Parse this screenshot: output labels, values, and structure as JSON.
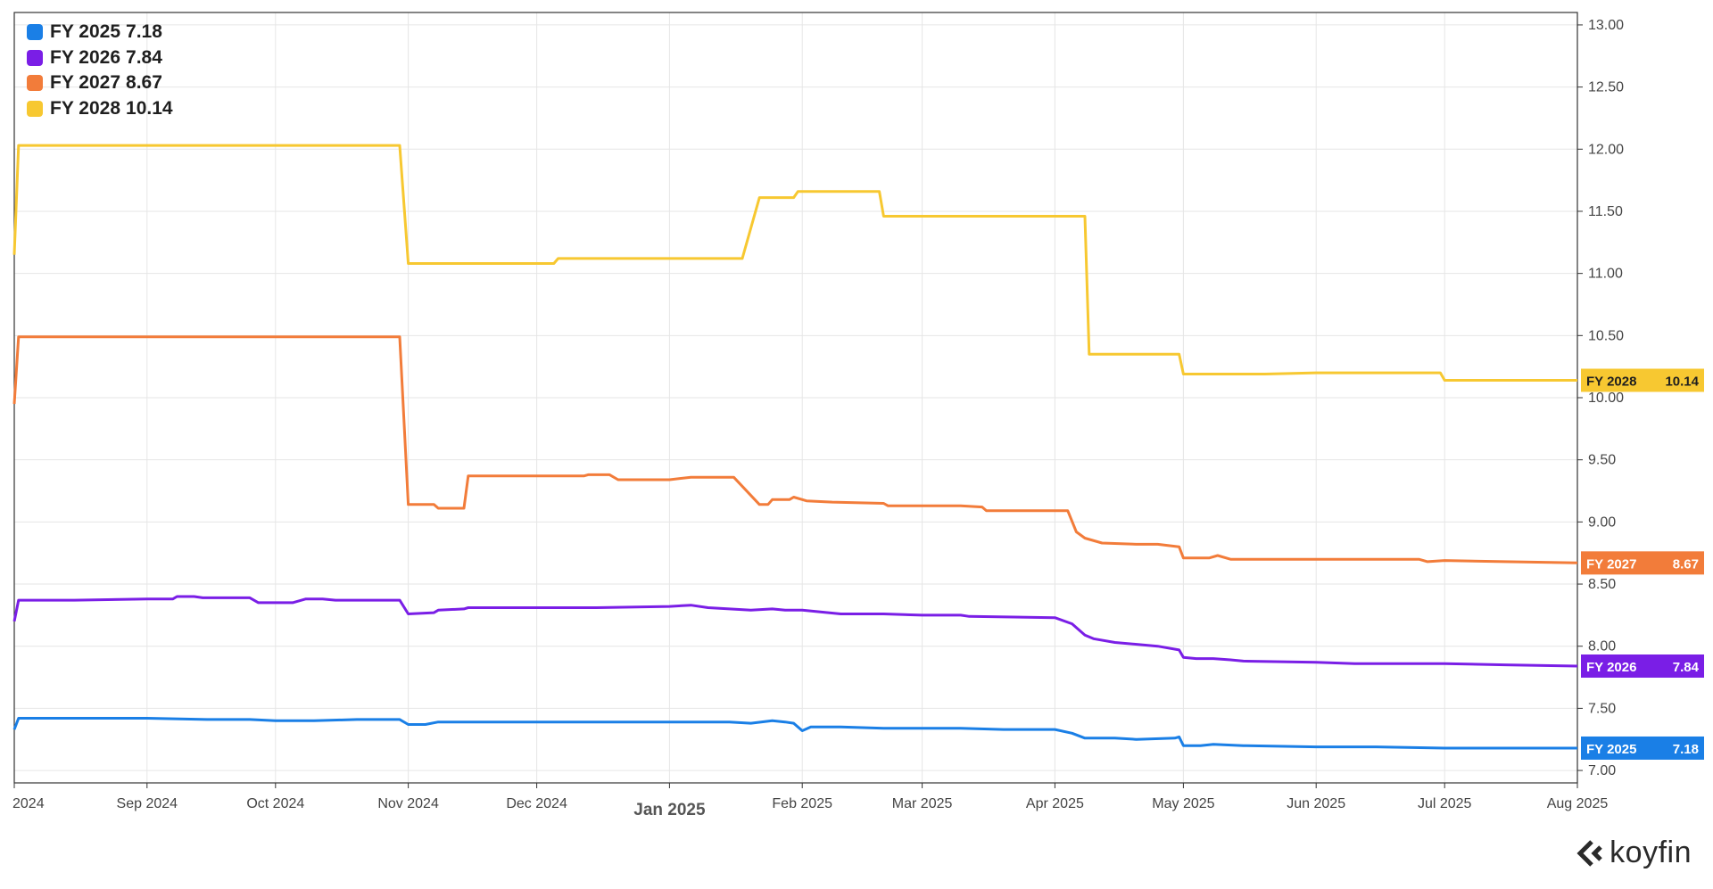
{
  "brand": {
    "name": "koyfin",
    "icon": "koyfin-chevron-logo"
  },
  "colors": {
    "grid": "#e6e6e6",
    "frame": "#333333",
    "tick_text": "#444444"
  },
  "chart_data": {
    "type": "line",
    "title": "",
    "xlabel": "",
    "ylabel": "",
    "ylim": [
      6.9,
      13.1
    ],
    "xlim": [
      "2024-08-01",
      "2025-08-01"
    ],
    "yticks": [
      7.0,
      7.5,
      8.0,
      8.5,
      9.0,
      9.5,
      10.0,
      10.5,
      11.0,
      11.5,
      12.0,
      12.5,
      13.0
    ],
    "ytick_labels": [
      "7.00",
      "7.50",
      "8.00",
      "8.50",
      "9.00",
      "9.50",
      "10.00",
      "10.50",
      "11.00",
      "11.50",
      "12.00",
      "12.50",
      "13.00"
    ],
    "xticks": [
      {
        "date": "2024-08-01",
        "label": "2024",
        "emphasis": false
      },
      {
        "date": "2024-09-01",
        "label": "Sep 2024",
        "emphasis": false
      },
      {
        "date": "2024-10-01",
        "label": "Oct 2024",
        "emphasis": false
      },
      {
        "date": "2024-11-01",
        "label": "Nov 2024",
        "emphasis": false
      },
      {
        "date": "2024-12-01",
        "label": "Dec 2024",
        "emphasis": false
      },
      {
        "date": "2025-01-01",
        "label": "Jan 2025",
        "emphasis": true
      },
      {
        "date": "2025-02-01",
        "label": "Feb 2025",
        "emphasis": false
      },
      {
        "date": "2025-03-01",
        "label": "Mar 2025",
        "emphasis": false
      },
      {
        "date": "2025-04-01",
        "label": "Apr 2025",
        "emphasis": false
      },
      {
        "date": "2025-05-01",
        "label": "May 2025",
        "emphasis": false
      },
      {
        "date": "2025-06-01",
        "label": "Jun 2025",
        "emphasis": false
      },
      {
        "date": "2025-07-01",
        "label": "Jul 2025",
        "emphasis": false
      },
      {
        "date": "2025-08-01",
        "label": "Aug 2025",
        "emphasis": false
      }
    ],
    "grid": true,
    "legend_position": "top-left",
    "series": [
      {
        "name": "FY 2025",
        "last_label": "7.18",
        "color": "#1a7fe6",
        "points": [
          [
            "2024-08-01",
            7.33
          ],
          [
            "2024-08-02",
            7.42
          ],
          [
            "2024-08-10",
            7.42
          ],
          [
            "2024-08-20",
            7.42
          ],
          [
            "2024-09-01",
            7.42
          ],
          [
            "2024-09-15",
            7.41
          ],
          [
            "2024-09-25",
            7.41
          ],
          [
            "2024-10-01",
            7.4
          ],
          [
            "2024-10-10",
            7.4
          ],
          [
            "2024-10-20",
            7.41
          ],
          [
            "2024-10-30",
            7.41
          ],
          [
            "2024-11-01",
            7.37
          ],
          [
            "2024-11-05",
            7.37
          ],
          [
            "2024-11-08",
            7.39
          ],
          [
            "2024-11-20",
            7.39
          ],
          [
            "2024-12-01",
            7.39
          ],
          [
            "2024-12-15",
            7.39
          ],
          [
            "2025-01-01",
            7.39
          ],
          [
            "2025-01-15",
            7.39
          ],
          [
            "2025-01-20",
            7.38
          ],
          [
            "2025-01-25",
            7.4
          ],
          [
            "2025-01-28",
            7.39
          ],
          [
            "2025-01-30",
            7.38
          ],
          [
            "2025-02-01",
            7.32
          ],
          [
            "2025-02-03",
            7.35
          ],
          [
            "2025-02-10",
            7.35
          ],
          [
            "2025-02-20",
            7.34
          ],
          [
            "2025-03-01",
            7.34
          ],
          [
            "2025-03-10",
            7.34
          ],
          [
            "2025-03-20",
            7.33
          ],
          [
            "2025-04-01",
            7.33
          ],
          [
            "2025-04-05",
            7.3
          ],
          [
            "2025-04-08",
            7.26
          ],
          [
            "2025-04-15",
            7.26
          ],
          [
            "2025-04-20",
            7.25
          ],
          [
            "2025-04-29",
            7.26
          ],
          [
            "2025-04-30",
            7.27
          ],
          [
            "2025-05-01",
            7.2
          ],
          [
            "2025-05-05",
            7.2
          ],
          [
            "2025-05-08",
            7.21
          ],
          [
            "2025-05-15",
            7.2
          ],
          [
            "2025-06-01",
            7.19
          ],
          [
            "2025-06-15",
            7.19
          ],
          [
            "2025-07-01",
            7.18
          ],
          [
            "2025-07-15",
            7.18
          ],
          [
            "2025-08-01",
            7.18
          ]
        ]
      },
      {
        "name": "FY 2026",
        "last_label": "7.84",
        "color": "#7a1ee6",
        "points": [
          [
            "2024-08-01",
            8.2
          ],
          [
            "2024-08-02",
            8.37
          ],
          [
            "2024-08-15",
            8.37
          ],
          [
            "2024-09-01",
            8.38
          ],
          [
            "2024-09-07",
            8.38
          ],
          [
            "2024-09-08",
            8.4
          ],
          [
            "2024-09-12",
            8.4
          ],
          [
            "2024-09-14",
            8.39
          ],
          [
            "2024-09-25",
            8.39
          ],
          [
            "2024-09-27",
            8.35
          ],
          [
            "2024-10-05",
            8.35
          ],
          [
            "2024-10-08",
            8.38
          ],
          [
            "2024-10-12",
            8.38
          ],
          [
            "2024-10-15",
            8.37
          ],
          [
            "2024-10-30",
            8.37
          ],
          [
            "2024-11-01",
            8.26
          ],
          [
            "2024-11-07",
            8.27
          ],
          [
            "2024-11-08",
            8.29
          ],
          [
            "2024-11-14",
            8.3
          ],
          [
            "2024-11-15",
            8.31
          ],
          [
            "2024-12-01",
            8.31
          ],
          [
            "2024-12-15",
            8.31
          ],
          [
            "2025-01-01",
            8.32
          ],
          [
            "2025-01-06",
            8.33
          ],
          [
            "2025-01-10",
            8.31
          ],
          [
            "2025-01-20",
            8.29
          ],
          [
            "2025-01-25",
            8.3
          ],
          [
            "2025-01-28",
            8.29
          ],
          [
            "2025-02-01",
            8.29
          ],
          [
            "2025-02-10",
            8.26
          ],
          [
            "2025-02-20",
            8.26
          ],
          [
            "2025-03-01",
            8.25
          ],
          [
            "2025-03-10",
            8.25
          ],
          [
            "2025-03-12",
            8.24
          ],
          [
            "2025-04-01",
            8.23
          ],
          [
            "2025-04-05",
            8.18
          ],
          [
            "2025-04-08",
            8.09
          ],
          [
            "2025-04-10",
            8.06
          ],
          [
            "2025-04-15",
            8.03
          ],
          [
            "2025-04-25",
            8.0
          ],
          [
            "2025-04-30",
            7.97
          ],
          [
            "2025-05-01",
            7.91
          ],
          [
            "2025-05-04",
            7.9
          ],
          [
            "2025-05-08",
            7.9
          ],
          [
            "2025-05-12",
            7.89
          ],
          [
            "2025-05-15",
            7.88
          ],
          [
            "2025-06-01",
            7.87
          ],
          [
            "2025-06-10",
            7.86
          ],
          [
            "2025-07-01",
            7.86
          ],
          [
            "2025-07-15",
            7.85
          ],
          [
            "2025-08-01",
            7.84
          ]
        ]
      },
      {
        "name": "FY 2027",
        "last_label": "8.67",
        "color": "#f27c3a",
        "points": [
          [
            "2024-08-01",
            9.95
          ],
          [
            "2024-08-02",
            10.49
          ],
          [
            "2024-09-01",
            10.49
          ],
          [
            "2024-10-01",
            10.49
          ],
          [
            "2024-10-30",
            10.49
          ],
          [
            "2024-11-01",
            9.14
          ],
          [
            "2024-11-07",
            9.14
          ],
          [
            "2024-11-08",
            9.11
          ],
          [
            "2024-11-14",
            9.11
          ],
          [
            "2024-11-15",
            9.37
          ],
          [
            "2024-12-01",
            9.37
          ],
          [
            "2024-12-12",
            9.37
          ],
          [
            "2024-12-13",
            9.38
          ],
          [
            "2024-12-18",
            9.38
          ],
          [
            "2024-12-20",
            9.34
          ],
          [
            "2025-01-01",
            9.34
          ],
          [
            "2025-01-06",
            9.36
          ],
          [
            "2025-01-16",
            9.36
          ],
          [
            "2025-01-22",
            9.14
          ],
          [
            "2025-01-24",
            9.14
          ],
          [
            "2025-01-25",
            9.18
          ],
          [
            "2025-01-29",
            9.18
          ],
          [
            "2025-01-30",
            9.2
          ],
          [
            "2025-02-02",
            9.17
          ],
          [
            "2025-02-08",
            9.16
          ],
          [
            "2025-02-20",
            9.15
          ],
          [
            "2025-02-21",
            9.13
          ],
          [
            "2025-03-10",
            9.13
          ],
          [
            "2025-03-15",
            9.12
          ],
          [
            "2025-03-16",
            9.09
          ],
          [
            "2025-04-01",
            9.09
          ],
          [
            "2025-04-04",
            9.09
          ],
          [
            "2025-04-06",
            8.92
          ],
          [
            "2025-04-08",
            8.87
          ],
          [
            "2025-04-12",
            8.83
          ],
          [
            "2025-04-20",
            8.82
          ],
          [
            "2025-04-25",
            8.82
          ],
          [
            "2025-04-30",
            8.8
          ],
          [
            "2025-05-01",
            8.71
          ],
          [
            "2025-05-07",
            8.71
          ],
          [
            "2025-05-09",
            8.73
          ],
          [
            "2025-05-12",
            8.7
          ],
          [
            "2025-06-01",
            8.7
          ],
          [
            "2025-06-25",
            8.7
          ],
          [
            "2025-06-27",
            8.68
          ],
          [
            "2025-07-01",
            8.69
          ],
          [
            "2025-07-15",
            8.68
          ],
          [
            "2025-08-01",
            8.67
          ]
        ]
      },
      {
        "name": "FY 2028",
        "last_label": "10.14",
        "color": "#f7c831",
        "points": [
          [
            "2024-08-01",
            11.15
          ],
          [
            "2024-08-02",
            12.03
          ],
          [
            "2024-09-01",
            12.03
          ],
          [
            "2024-10-01",
            12.03
          ],
          [
            "2024-10-30",
            12.03
          ],
          [
            "2024-11-01",
            11.08
          ],
          [
            "2024-12-01",
            11.08
          ],
          [
            "2024-12-05",
            11.08
          ],
          [
            "2024-12-06",
            11.12
          ],
          [
            "2025-01-01",
            11.12
          ],
          [
            "2025-01-18",
            11.12
          ],
          [
            "2025-01-22",
            11.61
          ],
          [
            "2025-01-30",
            11.61
          ],
          [
            "2025-01-31",
            11.66
          ],
          [
            "2025-02-19",
            11.66
          ],
          [
            "2025-02-20",
            11.46
          ],
          [
            "2025-03-01",
            11.46
          ],
          [
            "2025-04-01",
            11.46
          ],
          [
            "2025-04-08",
            11.46
          ],
          [
            "2025-04-09",
            10.35
          ],
          [
            "2025-04-30",
            10.35
          ],
          [
            "2025-05-01",
            10.19
          ],
          [
            "2025-05-20",
            10.19
          ],
          [
            "2025-06-01",
            10.2
          ],
          [
            "2025-06-30",
            10.2
          ],
          [
            "2025-07-01",
            10.14
          ],
          [
            "2025-08-01",
            10.14
          ]
        ]
      }
    ]
  }
}
